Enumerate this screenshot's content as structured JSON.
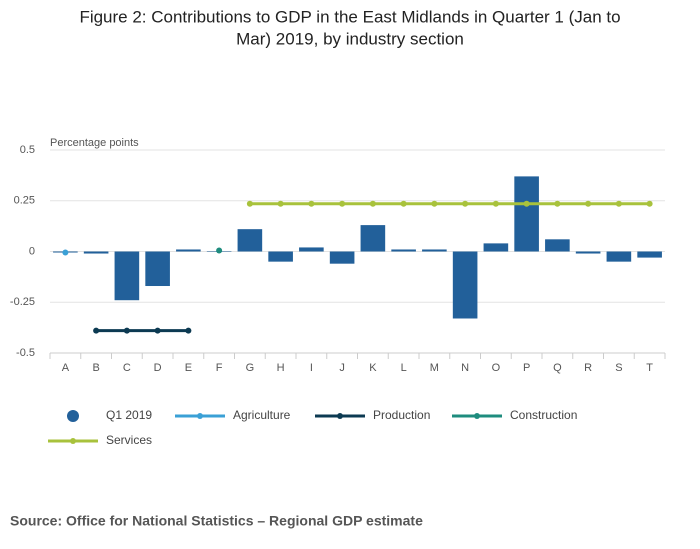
{
  "chart_data": {
    "type": "bar-line",
    "title": [
      "Figure 2: Contributions to GDP in the East Midlands in Quarter 1 (Jan to",
      "Mar) 2019, by industry section"
    ],
    "y_label": "Percentage points",
    "source": "Source: Office for National Statistics – Regional GDP estimate",
    "categories": [
      "A",
      "B",
      "C",
      "D",
      "E",
      "F",
      "G",
      "H",
      "I",
      "J",
      "K",
      "L",
      "M",
      "N",
      "O",
      "P",
      "Q",
      "R",
      "S",
      "T"
    ],
    "series": [
      {
        "name": "Q1 2019",
        "type": "bar",
        "color": "#22609a",
        "values": [
          -0.005,
          -0.01,
          -0.24,
          -0.17,
          0.01,
          0,
          0.11,
          -0.05,
          0.02,
          -0.06,
          0.13,
          0.01,
          0.01,
          -0.33,
          0.04,
          0.37,
          0.06,
          -0.01,
          -0.05,
          -0.03
        ]
      },
      {
        "name": "Agriculture",
        "type": "line",
        "color": "#3aa0d6",
        "values": [
          -0.005,
          null,
          null,
          null,
          null,
          null,
          null,
          null,
          null,
          null,
          null,
          null,
          null,
          null,
          null,
          null,
          null,
          null,
          null,
          null
        ]
      },
      {
        "name": "Production",
        "type": "line",
        "color": "#0c3a52",
        "values": [
          null,
          -0.39,
          -0.39,
          -0.39,
          -0.39,
          null,
          null,
          null,
          null,
          null,
          null,
          null,
          null,
          null,
          null,
          null,
          null,
          null,
          null,
          null
        ]
      },
      {
        "name": "Construction",
        "type": "line",
        "color": "#1e8c7e",
        "values": [
          null,
          null,
          null,
          null,
          null,
          0.005,
          null,
          null,
          null,
          null,
          null,
          null,
          null,
          null,
          null,
          null,
          null,
          null,
          null,
          null
        ]
      },
      {
        "name": "Services",
        "type": "line",
        "color": "#a8c23c",
        "values": [
          null,
          null,
          null,
          null,
          null,
          null,
          0.235,
          0.235,
          0.235,
          0.235,
          0.235,
          0.235,
          0.235,
          0.235,
          0.235,
          0.235,
          0.235,
          0.235,
          0.235,
          0.235
        ]
      }
    ],
    "ylim": [
      -0.5,
      0.5
    ],
    "yticks": [
      0.5,
      0.25,
      0,
      -0.25,
      -0.5
    ],
    "grid": true
  }
}
